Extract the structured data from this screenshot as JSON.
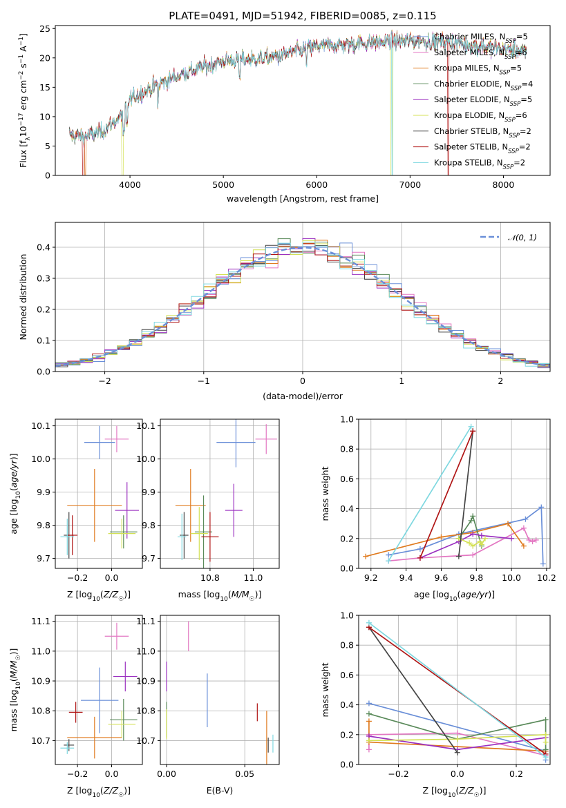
{
  "figure_title": "PLATE=0491, MJD=51942, FIBERID=0085, z=0.115",
  "models": [
    {
      "name": "Chabrier MILES, N$_{SSP}$=5",
      "label": "Chabrier MILES, N",
      "sub": "SSP",
      "suffix": "=5",
      "color": "#6a8fd8"
    },
    {
      "name": "Salpeter MILES, N$_{SSP}$=6",
      "label": "Salpeter MILES, N",
      "sub": "SSP",
      "suffix": "=6",
      "color": "#e377c2"
    },
    {
      "name": "Kroupa MILES, N$_{SSP}$=5",
      "label": "Kroupa MILES, N",
      "sub": "SSP",
      "suffix": "=5",
      "color": "#e07b1f"
    },
    {
      "name": "Chabrier ELODIE, N$_{SSP}$=4",
      "label": "Chabrier ELODIE, N",
      "sub": "SSP",
      "suffix": "=4",
      "color": "#5a8a5a"
    },
    {
      "name": "Salpeter ELODIE, N$_{SSP}$=5",
      "label": "Salpeter ELODIE, N",
      "sub": "SSP",
      "suffix": "=5",
      "color": "#9b30c0"
    },
    {
      "name": "Kroupa ELODIE, N$_{SSP}$=6",
      "label": "Kroupa ELODIE, N",
      "sub": "SSP",
      "suffix": "=6",
      "color": "#d4e157"
    },
    {
      "name": "Chabrier STELIB, N$_{SSP}$=2",
      "label": "Chabrier STELIB, N",
      "sub": "SSP",
      "suffix": "=2",
      "color": "#444444"
    },
    {
      "name": "Salpeter STELIB, N$_{SSP}$=2",
      "label": "Salpeter STELIB, N",
      "sub": "SSP",
      "suffix": "=2",
      "color": "#b01515"
    },
    {
      "name": "Kroupa STELIB, N$_{SSP}$=2",
      "label": "Kroupa STELIB, N",
      "sub": "SSP",
      "suffix": "=2",
      "color": "#7fd8e0"
    }
  ],
  "chart_data": [
    {
      "id": "spectrum",
      "type": "line",
      "xlabel": "wavelength [Angstrom, rest frame]",
      "ylabel": "Flux [f_λ10^-17 erg cm^-2 s^-1 A^-1]",
      "xlim": [
        3200,
        8500
      ],
      "ylim": [
        0,
        25.5
      ],
      "xticks": [
        4000,
        5000,
        6000,
        7000,
        8000
      ],
      "yticks": [
        0,
        5,
        10,
        15,
        20,
        25
      ],
      "x_range_plotted": [
        3350,
        8250
      ],
      "continuum_profile": {
        "x": [
          3350,
          3500,
          3700,
          3900,
          4000,
          4300,
          4600,
          5000,
          5500,
          6000,
          6500,
          7000,
          7500,
          8000,
          8250
        ],
        "y": [
          7,
          6.5,
          7.5,
          10,
          13,
          15.5,
          17.5,
          19.5,
          20,
          22,
          22.5,
          23,
          22.5,
          21.5,
          21
        ]
      },
      "legend": "upper right"
    },
    {
      "id": "residual_histogram",
      "type": "step",
      "xlabel": "(data-model)/error",
      "ylabel": "Normed distribution",
      "xlim": [
        -2.5,
        2.5
      ],
      "ylim": [
        0,
        0.48
      ],
      "xticks": [
        -2,
        -1,
        0,
        1,
        2
      ],
      "yticks": [
        0.0,
        0.1,
        0.2,
        0.3,
        0.4
      ],
      "grid": true,
      "reference_curve": {
        "label": "𝒩(0, 1)",
        "mean": 0,
        "sigma": 1,
        "color": "#6a8fd8",
        "style": "dashed"
      },
      "legend": "upper right"
    },
    {
      "id": "age_vs_Z",
      "type": "errorbar",
      "xlabel": "Z [log10(Z/Z☉)]",
      "ylabel": "age [log10(age/yr)]",
      "xlim": [
        -0.33,
        0.18
      ],
      "ylim": [
        9.67,
        10.12
      ],
      "xticks": [
        -0.2,
        0.0
      ],
      "yticks": [
        9.7,
        9.8,
        9.9,
        10.0,
        10.1
      ],
      "grid": true,
      "points": [
        {
          "model": 0,
          "x": -0.07,
          "xerr": 0.09,
          "y": 10.05,
          "yerr": 0.05
        },
        {
          "model": 1,
          "x": 0.03,
          "xerr": 0.07,
          "y": 10.06,
          "yerr": 0.04
        },
        {
          "model": 2,
          "x": -0.1,
          "xerr": 0.16,
          "y": 9.86,
          "yerr": 0.11
        },
        {
          "model": 3,
          "x": 0.07,
          "xerr": 0.08,
          "y": 9.78,
          "yerr": 0.05
        },
        {
          "model": 4,
          "x": 0.09,
          "xerr": 0.07,
          "y": 9.845,
          "yerr": 0.085
        },
        {
          "model": 5,
          "x": 0.06,
          "xerr": 0.08,
          "y": 9.775,
          "yerr": 0.045
        },
        {
          "model": 6,
          "x": -0.25,
          "xerr": 0.03,
          "y": 9.77,
          "yerr": 0.07
        },
        {
          "model": 7,
          "x": -0.23,
          "xerr": 0.03,
          "y": 9.77,
          "yerr": 0.06
        },
        {
          "model": 8,
          "x": -0.26,
          "xerr": 0.04,
          "y": 9.765,
          "yerr": 0.055
        }
      ]
    },
    {
      "id": "age_vs_mass",
      "type": "errorbar",
      "xlabel": "mass [log10(M/M☉)]",
      "ylabel": "",
      "xlim": [
        10.57,
        11.12
      ],
      "ylim": [
        9.67,
        10.12
      ],
      "xticks": [
        10.8,
        11.0
      ],
      "yticks": [
        9.7,
        9.8,
        9.9,
        10.0,
        10.1
      ],
      "grid": true,
      "points": [
        {
          "model": 0,
          "x": 10.92,
          "xerr": 0.09,
          "y": 10.05,
          "yerr": 0.075
        },
        {
          "model": 1,
          "x": 11.06,
          "xerr": 0.05,
          "y": 10.06,
          "yerr": 0.045
        },
        {
          "model": 2,
          "x": 10.71,
          "xerr": 0.07,
          "y": 9.86,
          "yerr": 0.11
        },
        {
          "model": 3,
          "x": 10.77,
          "xerr": 0.04,
          "y": 9.78,
          "yerr": 0.11
        },
        {
          "model": 4,
          "x": 10.91,
          "xerr": 0.04,
          "y": 9.845,
          "yerr": 0.08
        },
        {
          "model": 5,
          "x": 10.75,
          "xerr": 0.04,
          "y": 9.775,
          "yerr": 0.08
        },
        {
          "model": 6,
          "x": 10.68,
          "xerr": 0.02,
          "y": 9.77,
          "yerr": 0.07
        },
        {
          "model": 7,
          "x": 10.8,
          "xerr": 0.04,
          "y": 9.765,
          "yerr": 0.075
        },
        {
          "model": 8,
          "x": 10.67,
          "xerr": 0.02,
          "y": 9.765,
          "yerr": 0.07
        }
      ]
    },
    {
      "id": "massweight_vs_age",
      "type": "line",
      "xlabel": "age [log10(age/yr)]",
      "ylabel": "mass weight",
      "xlim": [
        9.13,
        10.22
      ],
      "ylim": [
        0,
        1.0
      ],
      "xticks": [
        9.2,
        9.4,
        9.6,
        9.8,
        10.0,
        10.2
      ],
      "yticks": [
        0.0,
        0.2,
        0.4,
        0.6,
        0.8,
        1.0
      ],
      "grid": true,
      "series": [
        {
          "model": 0,
          "x": [
            9.3,
            9.48,
            9.7,
            10.08,
            10.17,
            10.18
          ],
          "y": [
            0.09,
            0.13,
            0.23,
            0.33,
            0.41,
            0.03
          ]
        },
        {
          "model": 1,
          "x": [
            9.3,
            9.48,
            9.78,
            10.07,
            10.1,
            10.12,
            10.14
          ],
          "y": [
            0.05,
            0.07,
            0.09,
            0.27,
            0.19,
            0.18,
            0.19
          ]
        },
        {
          "model": 2,
          "x": [
            9.17,
            9.6,
            9.78,
            9.98,
            10.07
          ],
          "y": [
            0.08,
            0.21,
            0.24,
            0.3,
            0.15
          ]
        },
        {
          "model": 3,
          "x": [
            9.7,
            9.77,
            9.78,
            9.83
          ],
          "y": [
            0.2,
            0.32,
            0.35,
            0.15
          ]
        },
        {
          "model": 4,
          "x": [
            9.48,
            9.7,
            9.78,
            9.83,
            10.0
          ],
          "y": [
            0.07,
            0.18,
            0.23,
            0.22,
            0.2
          ]
        },
        {
          "model": 5,
          "x": [
            9.7,
            9.76,
            9.78,
            9.82,
            9.83,
            9.85
          ],
          "y": [
            0.2,
            0.17,
            0.15,
            0.18,
            0.16,
            0.2
          ]
        },
        {
          "model": 6,
          "x": [
            9.7,
            9.78
          ],
          "y": [
            0.08,
            0.92
          ]
        },
        {
          "model": 7,
          "x": [
            9.48,
            9.78
          ],
          "y": [
            0.07,
            0.92
          ]
        },
        {
          "model": 8,
          "x": [
            9.3,
            9.77
          ],
          "y": [
            0.05,
            0.95
          ]
        }
      ]
    },
    {
      "id": "mass_vs_Z",
      "type": "errorbar",
      "xlabel": "Z [log10(Z/Z☉)]",
      "ylabel": "mass [log10(M/M☉)]",
      "xlim": [
        -0.33,
        0.18
      ],
      "ylim": [
        10.62,
        11.12
      ],
      "xticks": [
        -0.2,
        0.0
      ],
      "yticks": [
        10.7,
        10.8,
        10.9,
        11.0,
        11.1
      ],
      "grid": true,
      "points": [
        {
          "model": 0,
          "x": -0.07,
          "xerr": 0.11,
          "y": 10.835,
          "yerr": 0.11
        },
        {
          "model": 1,
          "x": 0.03,
          "xerr": 0.07,
          "y": 11.05,
          "yerr": 0.045
        },
        {
          "model": 2,
          "x": -0.1,
          "xerr": 0.16,
          "y": 10.71,
          "yerr": 0.07
        },
        {
          "model": 3,
          "x": 0.07,
          "xerr": 0.08,
          "y": 10.77,
          "yerr": 0.07
        },
        {
          "model": 4,
          "x": 0.08,
          "xerr": 0.07,
          "y": 10.915,
          "yerr": 0.05
        },
        {
          "model": 5,
          "x": 0.06,
          "xerr": 0.08,
          "y": 10.755,
          "yerr": 0.045
        },
        {
          "model": 6,
          "x": -0.25,
          "xerr": 0.03,
          "y": 10.685,
          "yerr": 0.02
        },
        {
          "model": 7,
          "x": -0.21,
          "xerr": 0.04,
          "y": 10.795,
          "yerr": 0.035
        },
        {
          "model": 8,
          "x": -0.26,
          "xerr": 0.04,
          "y": 10.675,
          "yerr": 0.02
        }
      ]
    },
    {
      "id": "mass_vs_EBV",
      "type": "errorbar",
      "xlabel": "E(B-V)",
      "ylabel": "",
      "xlim": [
        -0.004,
        0.072
      ],
      "ylim": [
        10.62,
        11.12
      ],
      "xticks": [
        0.0,
        0.05
      ],
      "yticks": [
        10.7,
        10.8,
        10.9,
        11.0,
        11.1
      ],
      "grid": true,
      "points": [
        {
          "model": 0,
          "x": 0.026,
          "xerr": 0,
          "y": 10.835,
          "yerr": 0.09
        },
        {
          "model": 1,
          "x": 0.014,
          "xerr": 0,
          "y": 11.05,
          "yerr": 0.05
        },
        {
          "model": 2,
          "x": 0.064,
          "xerr": 0,
          "y": 10.71,
          "yerr": 0.09
        },
        {
          "model": 3,
          "x": 0.0,
          "xerr": 0,
          "y": 10.77,
          "yerr": 0.06
        },
        {
          "model": 4,
          "x": 0.0,
          "xerr": 0,
          "y": 10.915,
          "yerr": 0.05
        },
        {
          "model": 5,
          "x": 0.0,
          "xerr": 0,
          "y": 10.755,
          "yerr": 0.05
        },
        {
          "model": 6,
          "x": 0.065,
          "xerr": 0,
          "y": 10.685,
          "yerr": 0.025
        },
        {
          "model": 7,
          "x": 0.058,
          "xerr": 0,
          "y": 10.795,
          "yerr": 0.03
        },
        {
          "model": 8,
          "x": 0.068,
          "xerr": 0,
          "y": 10.69,
          "yerr": 0.03
        }
      ]
    },
    {
      "id": "massweight_vs_Z",
      "type": "line",
      "xlabel": "Z [log10(Z/Z☉)]",
      "ylabel": "mass weight",
      "xlim": [
        -0.335,
        0.315
      ],
      "ylim": [
        0,
        1.0
      ],
      "xticks": [
        -0.2,
        0.0,
        0.2
      ],
      "yticks": [
        0.0,
        0.2,
        0.4,
        0.6,
        0.8,
        1.0
      ],
      "grid": true,
      "series": [
        {
          "model": 0,
          "x": [
            -0.3,
            0.3,
            0.3
          ],
          "y": [
            0.41,
            0.09,
            0.03
          ]
        },
        {
          "model": 1,
          "x": [
            -0.3,
            -0.3,
            0.0,
            0.3
          ],
          "y": [
            0.1,
            0.2,
            0.21,
            0.06
          ]
        },
        {
          "model": 2,
          "x": [
            -0.3,
            -0.3,
            0.3
          ],
          "y": [
            0.29,
            0.15,
            0.09
          ]
        },
        {
          "model": 3,
          "x": [
            -0.3,
            0.0,
            0.3,
            0.3
          ],
          "y": [
            0.34,
            0.17,
            0.3,
            0.1
          ]
        },
        {
          "model": 4,
          "x": [
            -0.3,
            0.0,
            0.3
          ],
          "y": [
            0.19,
            0.1,
            0.18
          ]
        },
        {
          "model": 5,
          "x": [
            -0.3,
            0.0,
            0.3,
            0.3
          ],
          "y": [
            0.16,
            0.17,
            0.2,
            0.15
          ]
        },
        {
          "model": 6,
          "x": [
            -0.3,
            0.0
          ],
          "y": [
            0.92,
            0.08
          ]
        },
        {
          "model": 7,
          "x": [
            -0.3,
            0.3
          ],
          "y": [
            0.92,
            0.07
          ]
        },
        {
          "model": 8,
          "x": [
            -0.3,
            0.3
          ],
          "y": [
            0.95,
            0.05
          ]
        }
      ]
    }
  ]
}
